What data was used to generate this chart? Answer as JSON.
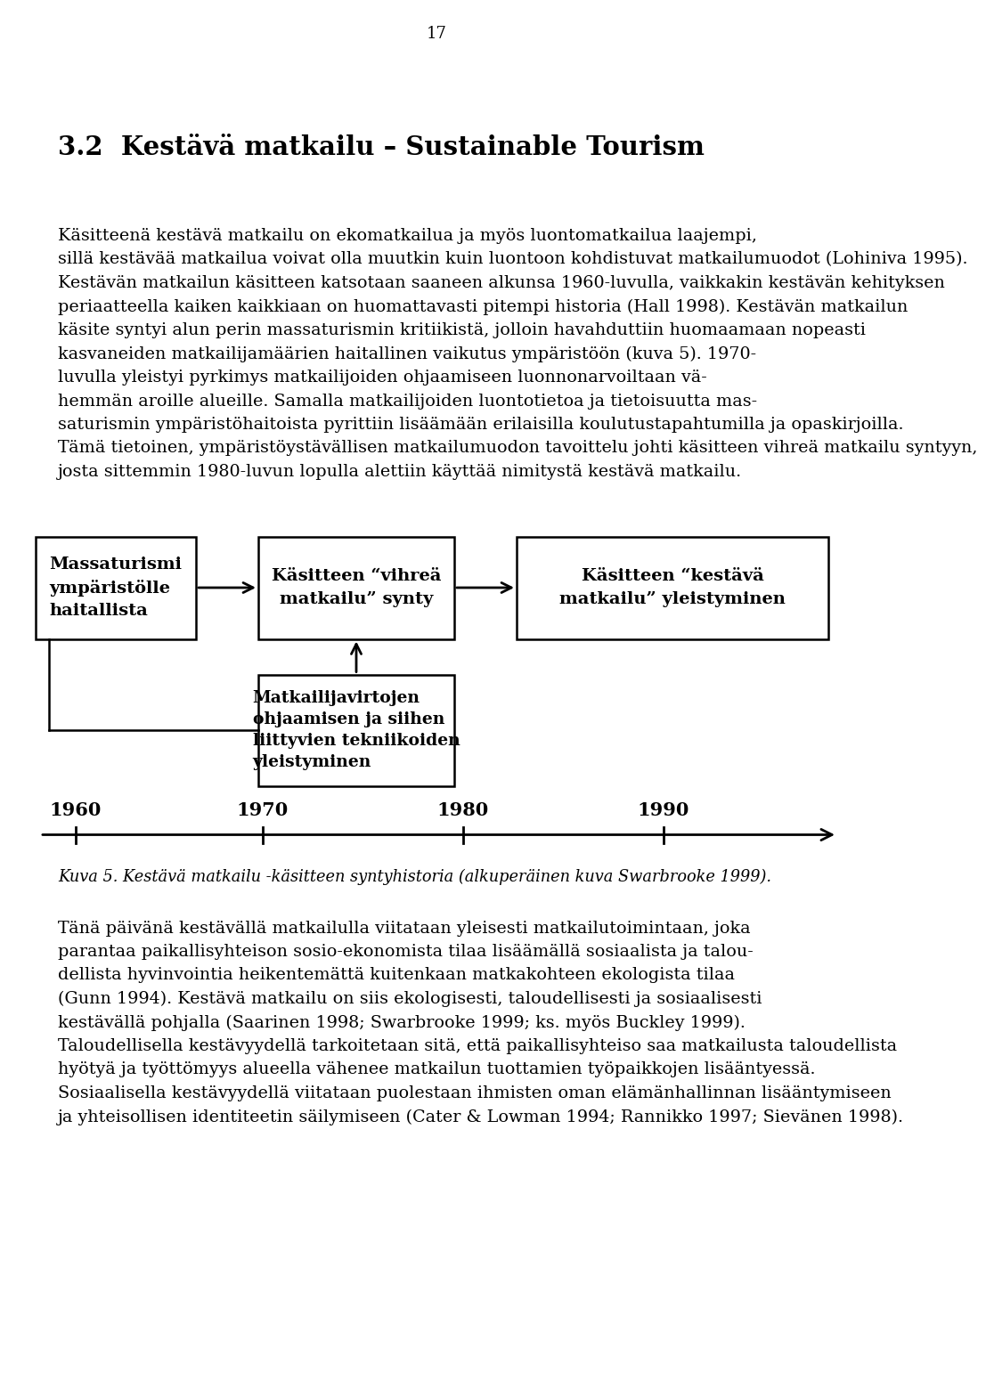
{
  "page_number": "17",
  "title": "3.2  Kestävä matkailu – Sustainable Tourism",
  "p1_lines": [
    "Käsitteenä kestävä matkailu on ekomatkailua ja myös luontomatkailua laajempi,",
    "sillä kestävää matkailua voivat olla muutkin kuin luontoon kohdistuvat matkailumuodot (Lohiniva 1995).",
    "Kestävän matkailun käsitteen katsotaan saaneen alkunsa 1960-luvulla, vaikkakin kestävän kehityksen",
    "periaatteella kaiken kaikkiaan on huomattavasti pitempi historia (Hall 1998). Kestävän matkailun",
    "käsite syntyi alun perin massaturismin kritiikistä, jolloin havahduttiin huomaamaan nopeasti",
    "kasvaneiden matkailijamäärien haitallinen vaikutus ympäristöön (kuva 5). 1970-",
    "luvulla yleistyi pyrkimys matkailijoiden ohjaamiseen luonnonarvoiltaan vä-",
    "hemmän aroille alueille. Samalla matkailijoiden luontotietoa ja tietoisuutta mas-",
    "saturismin ympäristöhaitoista pyrittiin lisäämään erilaisilla koulutustapahtumilla ja opaskirjoilla.",
    "Tämä tietoinen, ympäristöystävällisen matkailumuodon tavoittelu johti käsitteen vihreä matkailu syntyyn,",
    "josta sittemmin 1980-luvun lopulla alettiin käyttää nimitystä kestävä matkailu."
  ],
  "box1_line1": "Massaturismi",
  "box1_line2": "ympäristölle",
  "box1_line3": "haitallista",
  "box2_line1": "Käsitteen “vihreä",
  "box2_line2": "matkailu” synty",
  "box3_line1": "Käsitteen “kestävä",
  "box3_line2": "matkailu” yleistyminen",
  "box4_line1": "Matkailijavirtojen",
  "box4_line2": "ohjaamisen ja siihen",
  "box4_line3": "liittyvien tekniikoiden",
  "box4_line4": "yleistyminen",
  "timeline_years": [
    "1960",
    "1970",
    "1980",
    "1990"
  ],
  "caption": "Kuva 5. Kestävä matkailu -käsitteen syntyhistoria (alkuperäinen kuva Swarbrooke 1999).",
  "p2_lines": [
    "Tänä päivänä kestävällä matkailulla viitataan yleisesti matkailutoimintaan, joka",
    "parantaa paikallisyhteison sosio-ekonomista tilaa lisäämällä sosiaalista ja talou-",
    "dellista hyvinvointia heikentemättä kuitenkaan matkakohteen ekologista tilaa",
    "(Gunn 1994). Kestävä matkailu on siis ekologisesti, taloudellisesti ja sosiaalisesti",
    "kestävällä pohjalla (Saarinen 1998; Swarbrooke 1999; ks. myös Buckley 1999).",
    "Taloudellisella kestävyydellä tarkoitetaan sitä, että paikallisyhteiso saa matkailusta taloudellista",
    "hyötyä ja työttömyys alueella vähenee matkailun tuottamien työpaikkojen lisääntyessä.",
    "Sosiaalisella kestävyydellä viitataan puolestaan ihmisten oman elämänhallinnan lisääntymiseen",
    "ja yhteisollisen identiteetin säilymiseen (Cater & Lowman 1994; Rannikko 1997; Sievänen 1998)."
  ],
  "bg_color": "#ffffff"
}
